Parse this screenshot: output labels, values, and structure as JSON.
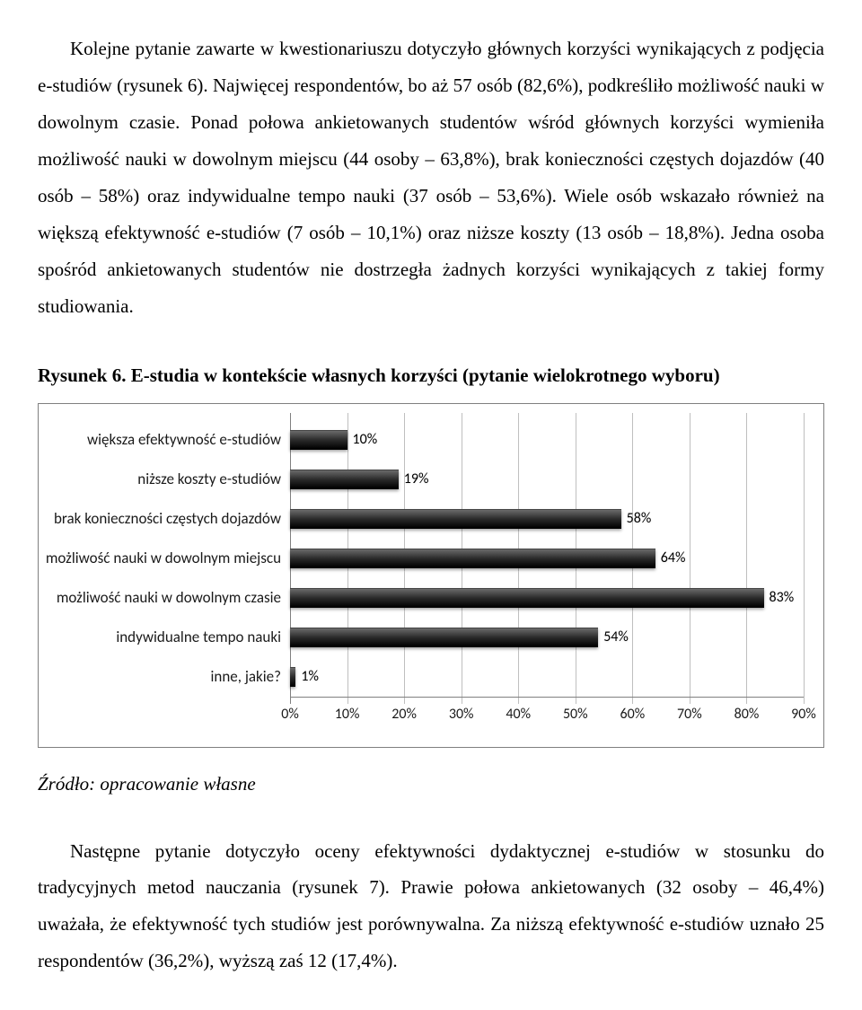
{
  "paragraphs": {
    "p1": "Kolejne pytanie zawarte w kwestionariuszu dotyczyło głównych korzyści wynikających z podjęcia e-studiów (rysunek 6). Najwięcej respondentów, bo aż 57 osób (82,6%), podkreśliło możliwość nauki w dowolnym czasie. Ponad połowa ankietowanych studentów wśród głównych korzyści wymieniła możliwość nauki w dowolnym miejscu (44 osoby – 63,8%), brak konieczności częstych dojazdów (40 osób – 58%) oraz indywidualne tempo nauki (37 osób – 53,6%). Wiele osób wskazało również na większą efektywność e-studiów (7 osób – 10,1%) oraz niższe koszty (13 osób – 18,8%). Jedna osoba spośród ankietowanych studentów nie dostrzegła żadnych korzyści wynikających z takiej formy studiowania.",
    "fig_title": "Rysunek 6. E-studia w kontekście własnych korzyści (pytanie wielokrotnego wyboru)",
    "source": "Źródło: opracowanie własne",
    "p2": "Następne pytanie dotyczyło oceny efektywności dydaktycznej e-studiów w stosunku do tradycyjnych metod nauczania (rysunek 7). Prawie połowa ankietowanych (32 osoby – 46,4%) uważała, że efektywność tych studiów jest porównywalna. Za niższą efektywność e-studiów uznało 25 respondentów (36,2%), wyższą zaś 12 (17,4%)."
  },
  "chart": {
    "type": "bar-horizontal",
    "x_max": 90,
    "x_tick_step": 10,
    "x_tick_labels": [
      "0%",
      "10%",
      "20%",
      "30%",
      "40%",
      "50%",
      "60%",
      "70%",
      "80%",
      "90%"
    ],
    "grid_color": "#bfbfbf",
    "axis_color": "#808080",
    "background_color": "#ffffff",
    "bar_color_gradient_top": "#6a6a6a",
    "bar_color_gradient_mid": "#2b2b2b",
    "bar_color_gradient_bottom": "#000000",
    "label_font": "Calibri",
    "label_fontsize": 17,
    "value_fontsize": 16,
    "categories": [
      {
        "label": "większa efektywność e-studiów",
        "value": 10,
        "value_label": "10%"
      },
      {
        "label": "niższe koszty e-studiów",
        "value": 19,
        "value_label": "19%"
      },
      {
        "label": "brak konieczności częstych dojazdów",
        "value": 58,
        "value_label": "58%"
      },
      {
        "label": "możliwość nauki w dowolnym miejscu",
        "value": 64,
        "value_label": "64%"
      },
      {
        "label": "możliwość nauki w dowolnym czasie",
        "value": 83,
        "value_label": "83%"
      },
      {
        "label": "indywidualne tempo nauki",
        "value": 54,
        "value_label": "54%"
      },
      {
        "label": "inne, jakie?",
        "value": 1,
        "value_label": "1%"
      }
    ]
  }
}
